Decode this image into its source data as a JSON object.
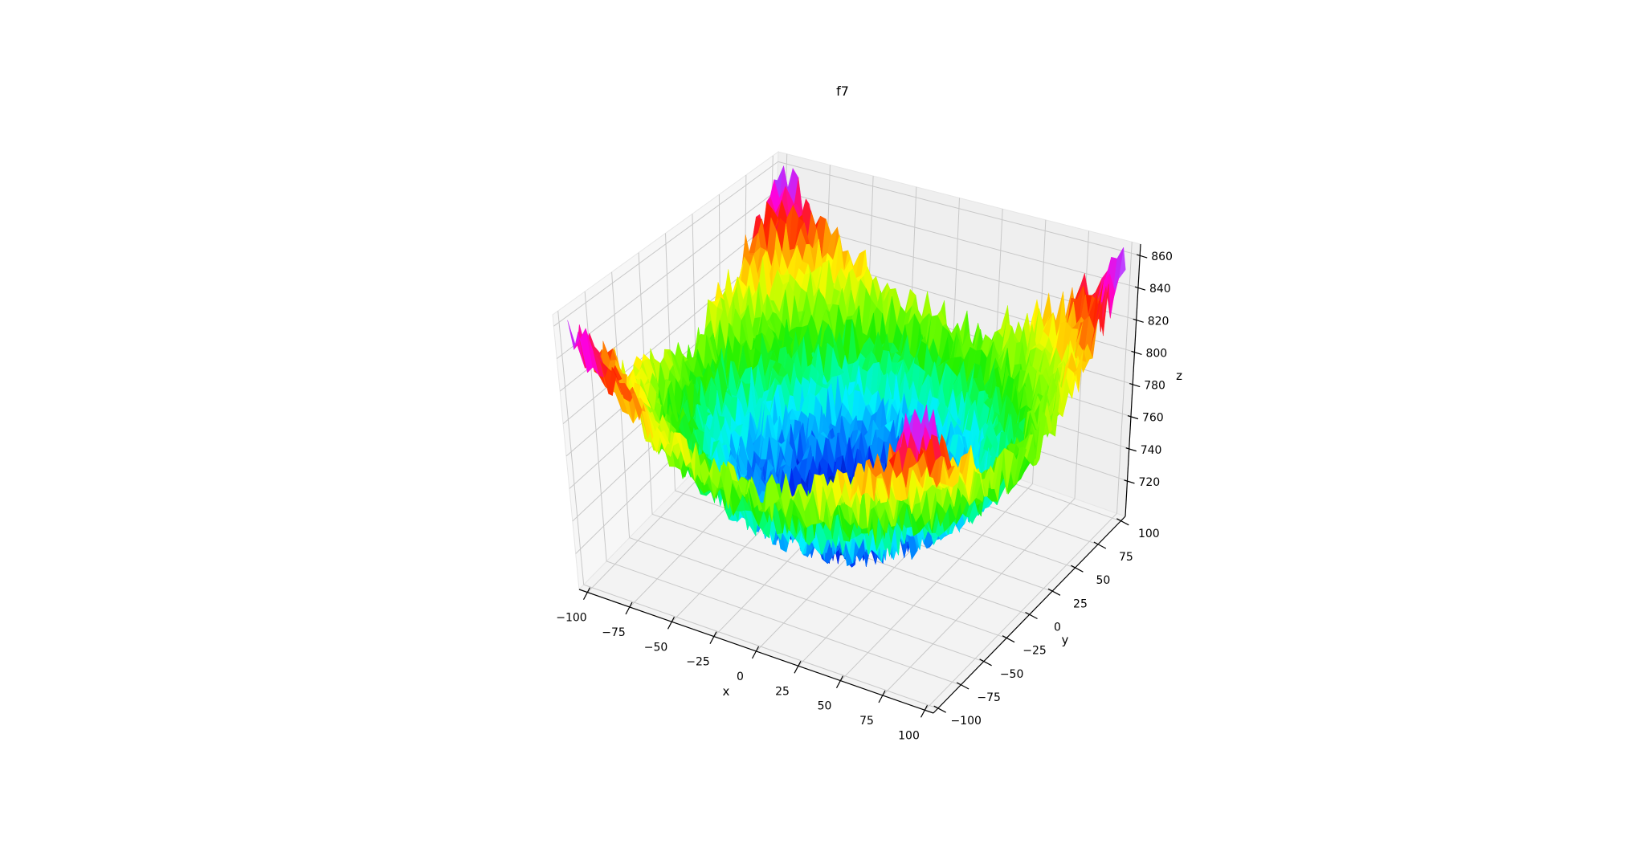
{
  "chart_data": {
    "type": "surface3d",
    "title": "f7",
    "xlabel": "x",
    "ylabel": "y",
    "zlabel": "z",
    "xlim": [
      -105,
      105
    ],
    "ylim": [
      -105,
      105
    ],
    "zlim": [
      698,
      867
    ],
    "x_ticks": [
      -100,
      -75,
      -50,
      -25,
      0,
      25,
      50,
      75,
      100
    ],
    "y_ticks": [
      -100,
      -75,
      -50,
      -25,
      0,
      25,
      50,
      75,
      100
    ],
    "z_ticks": [
      720,
      740,
      760,
      780,
      800,
      820,
      840,
      860
    ],
    "x_tick_labels": [
      "−100",
      "−75",
      "−50",
      "−25",
      "0",
      "25",
      "50",
      "75",
      "100"
    ],
    "y_tick_labels": [
      "−100",
      "−75",
      "−50",
      "−25",
      "0",
      "25",
      "50",
      "75",
      "100"
    ],
    "z_tick_labels": [
      "720",
      "740",
      "760",
      "780",
      "800",
      "820",
      "840",
      "860"
    ],
    "grid": true,
    "colormap": "gist_ncar",
    "surface_grid_x": [
      -100,
      -75,
      -50,
      -25,
      0,
      25,
      50,
      75,
      100
    ],
    "surface_grid_y": [
      -100,
      -75,
      -50,
      -25,
      0,
      25,
      50,
      75,
      100
    ],
    "surface_z_approx": [
      [
        858,
        827,
        806,
        792,
        788,
        792,
        806,
        827,
        858
      ],
      [
        827,
        796,
        775,
        761,
        757,
        761,
        775,
        796,
        827
      ],
      [
        806,
        775,
        754,
        740,
        736,
        740,
        754,
        775,
        806
      ],
      [
        792,
        761,
        740,
        726,
        722,
        726,
        740,
        761,
        792
      ],
      [
        788,
        757,
        736,
        722,
        718,
        722,
        736,
        757,
        788
      ],
      [
        792,
        761,
        740,
        726,
        722,
        726,
        740,
        761,
        792
      ],
      [
        806,
        775,
        754,
        740,
        736,
        740,
        754,
        775,
        806
      ],
      [
        827,
        796,
        775,
        761,
        757,
        761,
        775,
        796,
        827
      ],
      [
        858,
        827,
        806,
        792,
        788,
        792,
        806,
        827,
        858
      ]
    ],
    "surface_noise_amplitude": 15
  }
}
